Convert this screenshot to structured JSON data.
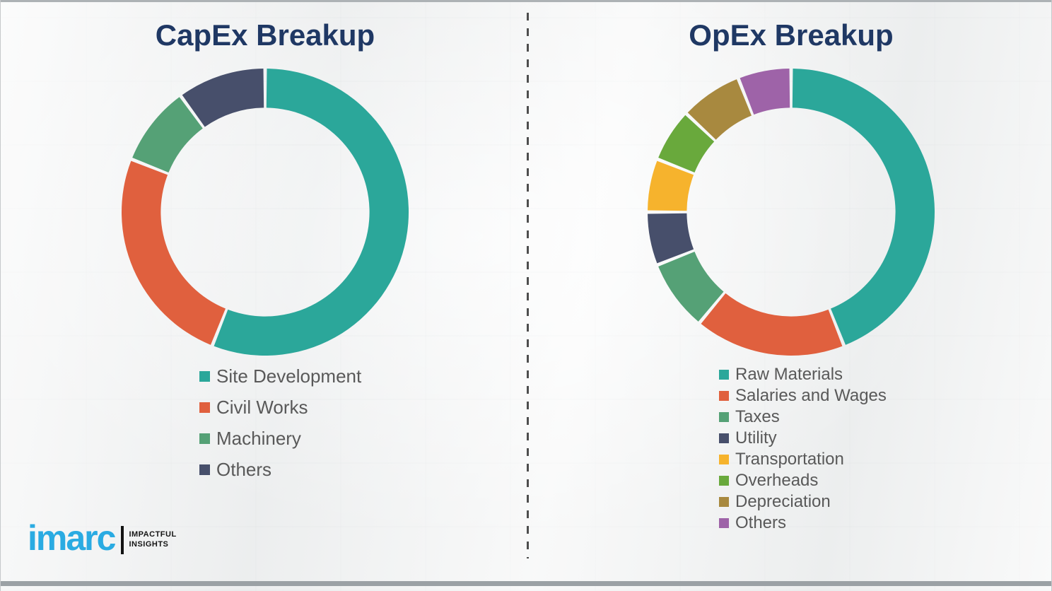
{
  "page": {
    "background_color": "#F1F2F2",
    "divider": {
      "style": "dashed-vertical",
      "color": "#4E4E4E"
    }
  },
  "colors": {
    "title_text": "#1F3864",
    "legend_text": "#595959",
    "brand_blue": "#2AABE2",
    "tagline_black": "#151515"
  },
  "chart_data": [
    {
      "type": "pie",
      "subtype": "donut",
      "title": "CapEx Breakup",
      "categories": [
        "Site Development",
        "Civil Works",
        "Machinery",
        "Others"
      ],
      "values": [
        56,
        25,
        9,
        10
      ],
      "values_note": "percent, estimated from arc angles (no data labels shown)",
      "colors": [
        "#2BA79A",
        "#E0603E",
        "#55A176",
        "#474F6B"
      ],
      "start_angle_deg": 0,
      "direction": "clockwise",
      "inner_radius_ratio": 0.72,
      "legend_position": "below-left",
      "data_labels": false
    },
    {
      "type": "pie",
      "subtype": "donut",
      "title": "OpEx Breakup",
      "categories": [
        "Raw Materials",
        "Salaries and Wages",
        "Taxes",
        "Utility",
        "Transportation",
        "Overheads",
        "Depreciation",
        "Others"
      ],
      "values": [
        44,
        17,
        8,
        6,
        6,
        6,
        7,
        6
      ],
      "values_note": "percent, estimated from arc angles (no data labels shown)",
      "colors": [
        "#2BA79A",
        "#E0603E",
        "#55A176",
        "#474F6B",
        "#F6B32D",
        "#69A93C",
        "#A8893F",
        "#9E63A8"
      ],
      "start_angle_deg": 0,
      "direction": "clockwise",
      "inner_radius_ratio": 0.72,
      "legend_position": "below-left",
      "data_labels": false
    }
  ],
  "logo": {
    "brand": "imarc",
    "tagline": [
      "IMPACTFUL",
      "INSIGHTS"
    ]
  }
}
